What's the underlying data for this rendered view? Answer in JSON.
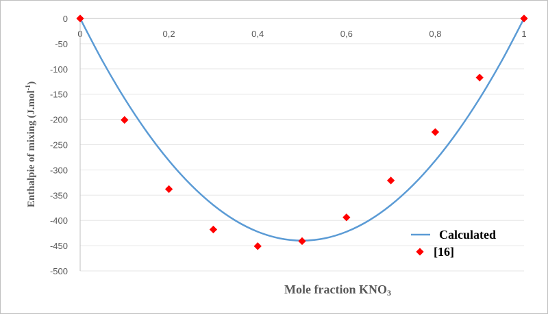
{
  "chart_data": {
    "type": "line+scatter",
    "x_ticks": [
      "0",
      "0,2",
      "0,4",
      "0,6",
      "0,8",
      "1"
    ],
    "y_ticks": [
      "0",
      "-50",
      "-100",
      "-150",
      "-200",
      "-250",
      "-300",
      "-350",
      "-400",
      "-450",
      "-500"
    ],
    "xlim": [
      0,
      1
    ],
    "ylim": [
      -500,
      0
    ],
    "xlabel": "Mole fraction KNO",
    "xlabel_sub": "3",
    "ylabel_main": "Enthalpie of mixing (J.mol",
    "ylabel_sup": "-1",
    "ylabel_end": ")",
    "series": [
      {
        "name": "Calculated",
        "kind": "line",
        "color": "#5b9bd5",
        "x": [
          0,
          0.05,
          0.1,
          0.15,
          0.2,
          0.25,
          0.3,
          0.35,
          0.4,
          0.45,
          0.5,
          0.55,
          0.6,
          0.65,
          0.7,
          0.75,
          0.8,
          0.85,
          0.9,
          0.95,
          1
        ],
        "y": [
          0,
          -83.6,
          -158.4,
          -224.4,
          -281.6,
          -330,
          -369.6,
          -400.4,
          -422.4,
          -435.6,
          -440,
          -435.6,
          -422.4,
          -400.4,
          -369.6,
          -330,
          -281.6,
          -224.4,
          -158.4,
          -83.6,
          0
        ]
      },
      {
        "name": "[16]",
        "kind": "scatter",
        "color": "#ff0000",
        "x": [
          0,
          0.1,
          0.2,
          0.3,
          0.4,
          0.5,
          0.6,
          0.7,
          0.8,
          0.9,
          1
        ],
        "y": [
          0,
          -201,
          -338,
          -418,
          -451,
          -441,
          -394,
          -321,
          -225,
          -117,
          0
        ]
      }
    ]
  }
}
